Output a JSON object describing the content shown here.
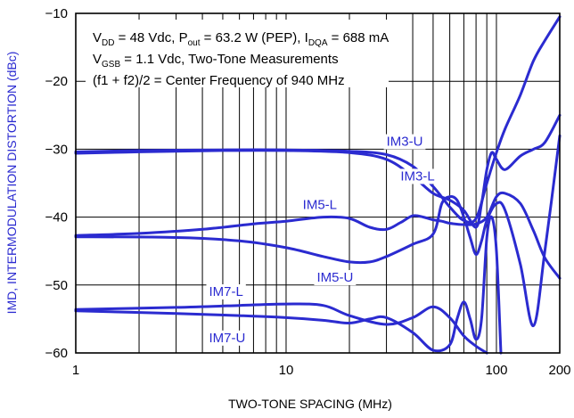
{
  "chart_data": {
    "type": "line",
    "title": "",
    "xlabel": "TWO-TONE SPACING (MHz)",
    "ylabel": "IMD, INTERMODULATION DISTORTION (dBc)",
    "x_scale": "log",
    "xlim": [
      1,
      200
    ],
    "ylim": [
      -60,
      -10
    ],
    "grid": true,
    "x_ticks": [
      1,
      2,
      3,
      4,
      5,
      6,
      7,
      8,
      9,
      10,
      20,
      30,
      40,
      50,
      60,
      70,
      80,
      90,
      100,
      200
    ],
    "x_tick_labels": [
      {
        "value": 1,
        "label": "1"
      },
      {
        "value": 10,
        "label": "10"
      },
      {
        "value": 100,
        "label": "100"
      },
      {
        "value": 200,
        "label": "200"
      }
    ],
    "y_ticks": [
      -10,
      -20,
      -30,
      -40,
      -50,
      -60
    ],
    "y_tick_labels": [
      "−10",
      "−20",
      "−30",
      "−40",
      "−50",
      "−60"
    ],
    "line_color": "#2b2bd0",
    "axis_label_color": "#2b2bd0",
    "notes": [
      {
        "line": 1,
        "segments": [
          {
            "t": "V",
            "sub": false
          },
          {
            "t": "DD",
            "sub": true
          },
          {
            "t": " = 48 Vdc, P",
            "sub": false
          },
          {
            "t": "out",
            "sub": true
          },
          {
            "t": " = 63.2 W (PEP), I",
            "sub": false
          },
          {
            "t": "DQA",
            "sub": true
          },
          {
            "t": " = 688 mA",
            "sub": false
          }
        ]
      },
      {
        "line": 2,
        "segments": [
          {
            "t": "V",
            "sub": false
          },
          {
            "t": "GSB",
            "sub": true
          },
          {
            "t": " = 1.1 Vdc, Two-Tone Measurements",
            "sub": false
          }
        ]
      },
      {
        "line": 3,
        "segments": [
          {
            "t": "(f1 + f2)/2 = Center Frequency of 940 MHz",
            "sub": false
          }
        ]
      }
    ],
    "series": [
      {
        "name": "IM3-U",
        "label_at": [
          30,
          -29.5
        ],
        "points": [
          [
            1,
            -30.4
          ],
          [
            2,
            -30.2
          ],
          [
            5,
            -30.1
          ],
          [
            10,
            -30.1
          ],
          [
            20,
            -30.3
          ],
          [
            30,
            -30.8
          ],
          [
            40,
            -32.5
          ],
          [
            50,
            -35.5
          ],
          [
            60,
            -38.5
          ],
          [
            70,
            -40.5
          ],
          [
            80,
            -40.2
          ],
          [
            90,
            -35
          ],
          [
            100,
            -30.5
          ],
          [
            110,
            -27
          ],
          [
            130,
            -22
          ],
          [
            150,
            -17
          ],
          [
            170,
            -14
          ],
          [
            200,
            -10.5
          ]
        ]
      },
      {
        "name": "IM3-L",
        "label_at": [
          35,
          -34.6
        ],
        "points": [
          [
            1,
            -30.6
          ],
          [
            2,
            -30.4
          ],
          [
            5,
            -30.2
          ],
          [
            10,
            -30.2
          ],
          [
            20,
            -30.5
          ],
          [
            30,
            -31.5
          ],
          [
            40,
            -34
          ],
          [
            50,
            -36.5
          ],
          [
            60,
            -37.5
          ],
          [
            70,
            -39
          ],
          [
            80,
            -41.5
          ],
          [
            85,
            -38
          ],
          [
            90,
            -33
          ],
          [
            95,
            -30.5
          ],
          [
            100,
            -31.5
          ],
          [
            110,
            -33
          ],
          [
            130,
            -31
          ],
          [
            150,
            -30
          ],
          [
            170,
            -29
          ],
          [
            200,
            -25
          ]
        ]
      },
      {
        "name": "IM5-L",
        "label_at": [
          12,
          -38.8
        ],
        "points": [
          [
            1,
            -42.7
          ],
          [
            2,
            -42.4
          ],
          [
            4,
            -41.8
          ],
          [
            7,
            -41
          ],
          [
            10,
            -40.6
          ],
          [
            15,
            -40
          ],
          [
            20,
            -40.2
          ],
          [
            25,
            -41.5
          ],
          [
            30,
            -41.8
          ],
          [
            35,
            -40.8
          ],
          [
            40,
            -39.8
          ],
          [
            45,
            -40
          ],
          [
            50,
            -40.4
          ],
          [
            55,
            -40.6
          ],
          [
            60,
            -40.9
          ],
          [
            70,
            -41.1
          ],
          [
            80,
            -41
          ],
          [
            90,
            -40
          ],
          [
            100,
            -37
          ],
          [
            110,
            -36.5
          ],
          [
            130,
            -38
          ],
          [
            150,
            -42
          ],
          [
            170,
            -46
          ],
          [
            200,
            -49
          ]
        ]
      },
      {
        "name": "IM5-U",
        "label_at": [
          14,
          -49.5
        ],
        "points": [
          [
            1,
            -42.9
          ],
          [
            3,
            -43
          ],
          [
            6,
            -43.5
          ],
          [
            10,
            -44.5
          ],
          [
            15,
            -45.8
          ],
          [
            20,
            -46.6
          ],
          [
            25,
            -46.6
          ],
          [
            30,
            -45.8
          ],
          [
            40,
            -44
          ],
          [
            50,
            -42.5
          ],
          [
            55,
            -38
          ],
          [
            60,
            -37
          ],
          [
            65,
            -37.5
          ],
          [
            70,
            -40
          ],
          [
            75,
            -43
          ],
          [
            80,
            -45.5
          ],
          [
            85,
            -43.5
          ],
          [
            90,
            -40.5
          ],
          [
            100,
            -38
          ],
          [
            110,
            -39
          ],
          [
            130,
            -47
          ],
          [
            150,
            -56
          ],
          [
            170,
            -45
          ],
          [
            200,
            -28
          ]
        ]
      },
      {
        "name": "IM7-L",
        "label_at": [
          4.3,
          -51.6
        ],
        "points": [
          [
            1,
            -53.6
          ],
          [
            3,
            -53.3
          ],
          [
            6,
            -53
          ],
          [
            10,
            -52.8
          ],
          [
            15,
            -53
          ],
          [
            20,
            -54.5
          ],
          [
            30,
            -55.8
          ],
          [
            40,
            -54.8
          ],
          [
            50,
            -53.2
          ],
          [
            60,
            -54.8
          ],
          [
            70,
            -57.5
          ],
          [
            80,
            -59
          ],
          [
            90,
            -60
          ]
        ]
      },
      {
        "name": "IM7-U",
        "label_at": [
          4.3,
          -58.4
        ],
        "points": [
          [
            1,
            -53.8
          ],
          [
            3,
            -54.2
          ],
          [
            6,
            -54.5
          ],
          [
            10,
            -54.8
          ],
          [
            15,
            -55.2
          ],
          [
            20,
            -55.6
          ],
          [
            25,
            -55
          ],
          [
            30,
            -54.8
          ],
          [
            40,
            -57
          ],
          [
            50,
            -59.6
          ],
          [
            60,
            -58.8
          ],
          [
            65,
            -55
          ],
          [
            70,
            -52.5
          ],
          [
            75,
            -55
          ],
          [
            80,
            -58
          ],
          [
            85,
            -55
          ],
          [
            90,
            -43
          ],
          [
            95,
            -40
          ],
          [
            100,
            -45
          ],
          [
            105,
            -60
          ]
        ]
      }
    ]
  }
}
